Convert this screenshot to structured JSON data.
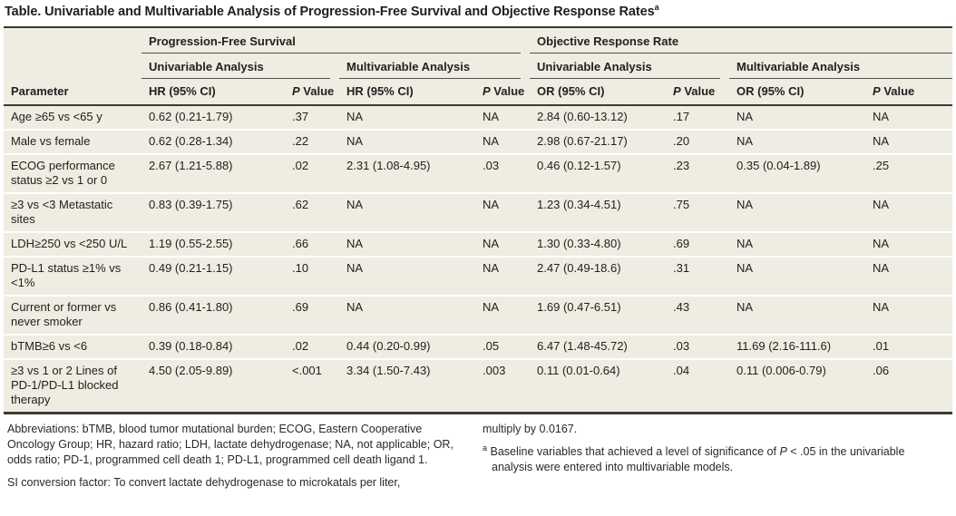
{
  "title": {
    "text": "Table. Univariable and Multivariable Analysis of Progression-Free Survival and Objective Response Rates",
    "superscript": "a"
  },
  "colors": {
    "row_background": "#efece2",
    "rule_dark": "#3b3a36",
    "rule_thin": "#51504b",
    "text": "#22211e",
    "page_background": "#ffffff"
  },
  "table": {
    "spanners": {
      "pfs": "Progression-Free Survival",
      "orr": "Objective Response Rate",
      "univariable": "Univariable Analysis",
      "multivariable": "Multivariable Analysis"
    },
    "columns": {
      "parameter": "Parameter",
      "hr": "HR (95% CI)",
      "or": "OR (95% CI)",
      "p_italic": "P",
      "p_rest": " Value"
    },
    "rows": [
      [
        "Age ≥65 vs <65 y",
        "0.62 (0.21-1.79)",
        ".37",
        "NA",
        "NA",
        "2.84 (0.60-13.12)",
        ".17",
        "NA",
        "NA"
      ],
      [
        "Male vs female",
        "0.62 (0.28-1.34)",
        ".22",
        "NA",
        "NA",
        "2.98 (0.67-21.17)",
        ".20",
        "NA",
        "NA"
      ],
      [
        "ECOG performance status ≥2 vs 1 or 0",
        "2.67 (1.21-5.88)",
        ".02",
        "2.31 (1.08-4.95)",
        ".03",
        "0.46 (0.12-1.57)",
        ".23",
        "0.35 (0.04-1.89)",
        ".25"
      ],
      [
        "≥3 vs <3 Metastatic sites",
        "0.83 (0.39-1.75)",
        ".62",
        "NA",
        "NA",
        "1.23 (0.34-4.51)",
        ".75",
        "NA",
        "NA"
      ],
      [
        "LDH≥250 vs <250 U/L",
        "1.19 (0.55-2.55)",
        ".66",
        "NA",
        "NA",
        "1.30 (0.33-4.80)",
        ".69",
        "NA",
        "NA"
      ],
      [
        "PD-L1 status ≥1% vs <1%",
        "0.49 (0.21-1.15)",
        ".10",
        "NA",
        "NA",
        "2.47 (0.49-18.6)",
        ".31",
        "NA",
        "NA"
      ],
      [
        "Current or former vs never smoker",
        "0.86 (0.41-1.80)",
        ".69",
        "NA",
        "NA",
        "1.69 (0.47-6.51)",
        ".43",
        "NA",
        "NA"
      ],
      [
        "bTMB≥6 vs <6",
        "0.39 (0.18-0.84)",
        ".02",
        "0.44 (0.20-0.99)",
        ".05",
        "6.47 (1.48-45.72)",
        ".03",
        "11.69 (2.16-111.6)",
        ".01"
      ],
      [
        "≥3 vs 1 or 2 Lines of PD-1/PD-L1 blocked therapy",
        "4.50 (2.05-9.89)",
        "<.001",
        "3.34 (1.50-7.43)",
        ".003",
        "0.11 (0.01-0.64)",
        ".04",
        "0.11 (0.006-0.79)",
        ".06"
      ]
    ]
  },
  "footnotes": {
    "abbreviations": "Abbreviations: bTMB, blood tumor mutational burden; ECOG, Eastern Cooperative Oncology Group; HR, hazard ratio; LDH, lactate dehydrogenase; NA, not applicable; OR, odds ratio; PD-1, programmed cell death 1; PD-L1, programmed cell death ligand 1.",
    "si_conversion_left": "SI conversion factor: To convert lactate dehydrogenase to microkatals per liter,",
    "si_conversion_right": "multiply by 0.0167.",
    "note_a_marker": "a",
    "note_a_pre": "Baseline variables that achieved a level of significance of ",
    "note_a_italic": "P",
    "note_a_post": " < .05 in the univariable analysis were entered into multivariable models."
  }
}
